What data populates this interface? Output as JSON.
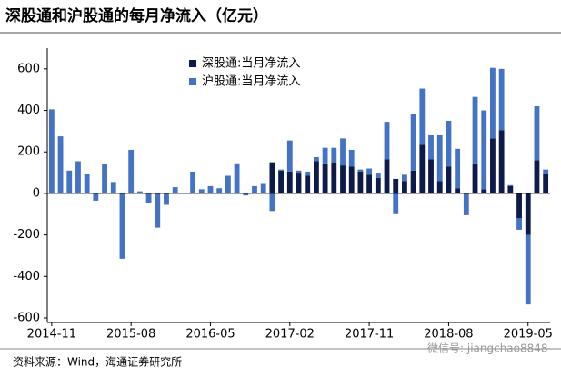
{
  "chart_data": {
    "type": "bar",
    "stacked": true,
    "title": "深股通和沪股通的每月净流入（亿元）",
    "source": "资料来源：Wind，海通证券研究所",
    "watermark": "微信号: jiangchao8848",
    "categories": [
      "2014-11",
      null,
      null,
      null,
      null,
      null,
      null,
      null,
      null,
      "2015-08",
      null,
      null,
      null,
      null,
      null,
      null,
      null,
      null,
      "2016-05",
      null,
      null,
      null,
      null,
      null,
      null,
      null,
      null,
      "2017-02",
      null,
      null,
      null,
      null,
      null,
      null,
      null,
      null,
      "2017-11",
      null,
      null,
      null,
      null,
      null,
      null,
      null,
      null,
      "2018-08",
      null,
      null,
      null,
      null,
      null,
      null,
      null,
      null,
      "2019-05",
      null,
      null
    ],
    "series": [
      {
        "name": "深股通:当月净流入",
        "color": "#0d1a4a",
        "values": [
          null,
          null,
          null,
          null,
          null,
          null,
          null,
          null,
          null,
          null,
          null,
          null,
          null,
          null,
          null,
          null,
          null,
          null,
          null,
          null,
          null,
          null,
          null,
          null,
          null,
          150,
          110,
          105,
          100,
          85,
          155,
          145,
          150,
          135,
          130,
          105,
          90,
          75,
          165,
          70,
          60,
          110,
          235,
          165,
          60,
          130,
          25,
          0,
          145,
          20,
          265,
          305,
          35,
          -120,
          -200,
          160,
          95
        ]
      },
      {
        "name": "沪股通:当月净流入",
        "color": "#4472c4",
        "values": [
          405,
          275,
          110,
          155,
          95,
          -35,
          140,
          55,
          -315,
          210,
          10,
          -45,
          -165,
          -55,
          30,
          0,
          105,
          20,
          35,
          25,
          85,
          145,
          -10,
          35,
          50,
          -85,
          5,
          150,
          10,
          20,
          20,
          75,
          70,
          130,
          80,
          10,
          30,
          25,
          180,
          -100,
          30,
          275,
          270,
          115,
          220,
          220,
          190,
          -105,
          320,
          380,
          340,
          295,
          5,
          -55,
          -335,
          260,
          20
        ]
      }
    ],
    "ylim": [
      -600,
      700
    ],
    "yticks": [
      -600,
      -400,
      -200,
      0,
      200,
      400,
      600
    ],
    "legend": "top-center"
  }
}
